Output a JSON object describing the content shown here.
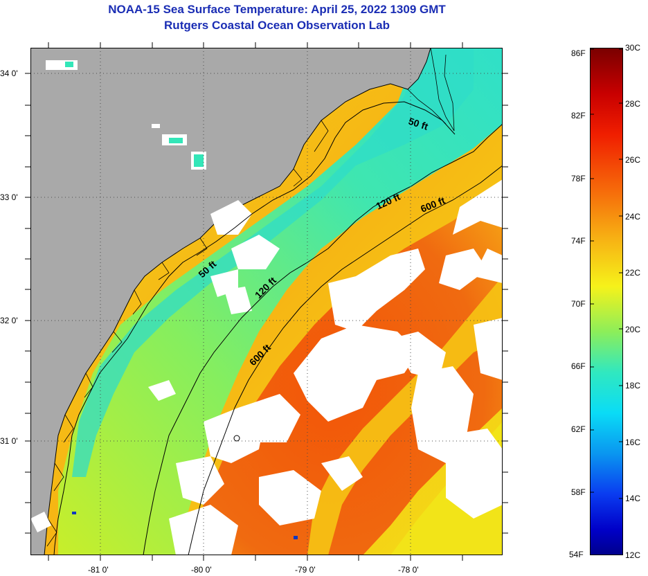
{
  "title_line1": "NOAA-15 Sea Surface Temperature:  April 25, 2022 1309 GMT",
  "title_line2": "Rutgers Coastal Ocean Observation Lab",
  "lat_labels": [
    "34 0'",
    "33 0'",
    "32 0'",
    "31 0'"
  ],
  "lon_labels": [
    "-81 0'",
    "-80 0'",
    "-79 0'",
    "-78 0'"
  ],
  "contour_labels": [
    "50 ft",
    "120 ft",
    "600 ft",
    "50 ft",
    "120 ft",
    "600 ft"
  ],
  "colorbar": {
    "fahrenheit": [
      "86F",
      "82F",
      "78F",
      "74F",
      "70F",
      "66F",
      "62F",
      "58F",
      "54F"
    ],
    "celsius": [
      "30C",
      "28C",
      "26C",
      "24C",
      "22C",
      "20C",
      "18C",
      "16C",
      "14C",
      "12C"
    ]
  },
  "colors": {
    "land": "#a9a9a9",
    "cloud": "#ffffff",
    "shelf_water": "#33e6b8",
    "mid_water": "#b5f03a",
    "gulf_stream": "#f25c0c",
    "warm_water": "#f5e611"
  }
}
